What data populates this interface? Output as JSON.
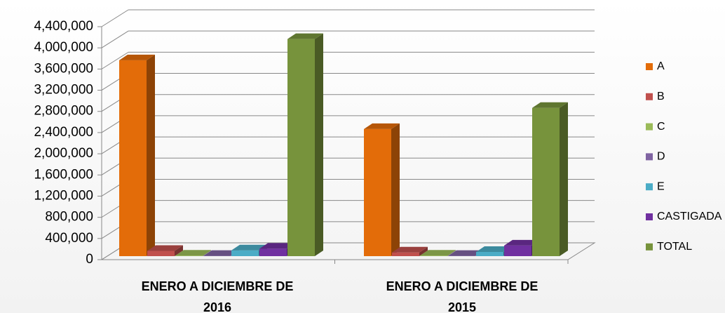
{
  "chart_data": {
    "type": "bar3d",
    "categories": [
      "ENERO A DICIEMBRE DE 2016",
      "ENERO A DICIEMBRE DE 2015"
    ],
    "series": [
      {
        "name": "A",
        "color": "#e36c09",
        "values": [
          3700000,
          2400000
        ]
      },
      {
        "name": "B",
        "color": "#c0504d",
        "values": [
          100000,
          70000
        ]
      },
      {
        "name": "C",
        "color": "#9bbb59",
        "values": [
          10000,
          10000
        ]
      },
      {
        "name": "D",
        "color": "#8064a2",
        "values": [
          5000,
          5000
        ]
      },
      {
        "name": "E",
        "color": "#4bacc6",
        "values": [
          110000,
          80000
        ]
      },
      {
        "name": "CASTIGADA",
        "color": "#7030a0",
        "values": [
          140000,
          200000
        ]
      },
      {
        "name": "TOTAL",
        "color": "#77933c",
        "values": [
          4100000,
          2800000
        ]
      }
    ],
    "ylim": [
      0,
      4400000
    ],
    "yticks": [
      {
        "value": 0,
        "label": "0"
      },
      {
        "value": 400000,
        "label": "400,000"
      },
      {
        "value": 800000,
        "label": "800,000"
      },
      {
        "value": 1200000,
        "label": "1,200,000"
      },
      {
        "value": 1600000,
        "label": "1,600,000"
      },
      {
        "value": 2000000,
        "label": "2,000,000"
      },
      {
        "value": 2400000,
        "label": "2,400,000"
      },
      {
        "value": 2800000,
        "label": "2,800,000"
      },
      {
        "value": 3200000,
        "label": "3,200,000"
      },
      {
        "value": 3600000,
        "label": "3,600,000"
      },
      {
        "value": 4000000,
        "label": "4,000,000"
      },
      {
        "value": 4400000,
        "label": "4,400,000"
      }
    ],
    "grid": true,
    "legend": "right"
  }
}
